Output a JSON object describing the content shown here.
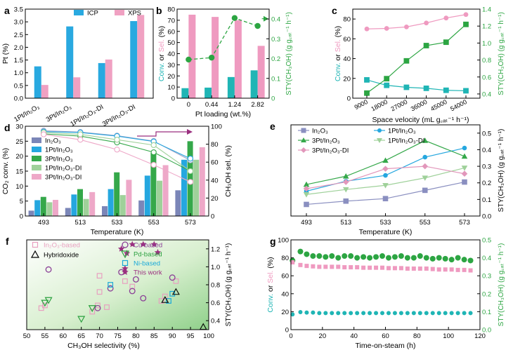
{
  "colors": {
    "icp": "#29a9e0",
    "xps": "#f0a1c2",
    "conv": "#1fb5b5",
    "sel": "#ef9ac0",
    "sty": "#2ca542",
    "in2o3": "#7b86b8",
    "pt1": "#25a7df",
    "pt3": "#35a84a",
    "pt1di": "#9fd19a",
    "pt3di": "#eea8c8",
    "in2o3_line": "#8a8fc0",
    "pt3di_line": "#e297bb",
    "pink_marker": "#e8a0c0",
    "cu_marker": "#8b3f97",
    "pd_marker": "#2ba03f",
    "ni_marker": "#1aa9d8",
    "this_work": "#9a2f7f",
    "arrow": "#9a2f7f"
  },
  "chart_data": [
    {
      "id": "a",
      "panel_label": "a",
      "type": "bar",
      "ylabel": "Pt (%)",
      "ylim": [
        0,
        3.5
      ],
      "yticks": [
        "0.0",
        "0.5",
        "1.0",
        "1.5",
        "2.0",
        "2.5",
        "3.0",
        "3.5"
      ],
      "categories": [
        "1Pt/In₂O₃",
        "3Pt/In₂O₃",
        "1Pt/In₂O₃-DI",
        "3Pt/In₂O₃-DI"
      ],
      "series": [
        {
          "name": "ICP",
          "values": [
            1.25,
            2.82,
            1.38,
            3.03
          ]
        },
        {
          "name": "XPS",
          "values": [
            0.52,
            0.82,
            1.52,
            3.27
          ]
        }
      ],
      "legend": [
        "ICP",
        "XPS"
      ]
    },
    {
      "id": "b",
      "panel_label": "b",
      "type": "bar",
      "xlabel": "Pt loading (wt.%)",
      "categories": [
        "0",
        "0.44",
        "1.24",
        "2.82"
      ],
      "ylim": [
        0,
        80
      ],
      "yticks": [
        "0",
        "10",
        "20",
        "30",
        "40",
        "50",
        "60",
        "70",
        "80"
      ],
      "ylabel_parts": [
        "Conv.",
        " or ",
        "Sel.",
        " (%)"
      ],
      "y2label": "STY(CH₃OH) (g g꜀ₐₜ⁻¹ h⁻¹)",
      "y2lim": [
        0,
        0.45
      ],
      "y2ticks": [
        "0",
        "0.1",
        "0.2",
        "0.3",
        "0.4"
      ],
      "series": [
        {
          "name": "Conv.",
          "values": [
            9,
            9.5,
            19,
            25
          ]
        },
        {
          "name": "Sel.",
          "values": [
            75,
            73,
            70,
            47
          ]
        },
        {
          "name": "STY",
          "values": [
            0.195,
            0.205,
            0.405,
            0.365
          ]
        }
      ]
    },
    {
      "id": "c",
      "panel_label": "c",
      "type": "line",
      "xlabel": "Space velocity (mL g꜀ₐₜ⁻¹ h⁻¹)",
      "x": [
        9000,
        18000,
        27000,
        36000,
        45000,
        54000
      ],
      "xticks": [
        "9000",
        "18000",
        "27000",
        "36000",
        "45000",
        "54000"
      ],
      "ylim": [
        0,
        90
      ],
      "yticks": [
        "0",
        "20",
        "40",
        "60",
        "80"
      ],
      "ylabel_parts": [
        "Conv.",
        " or ",
        "Sel.",
        " (%)"
      ],
      "y2label": "STY(CH₃OH) (g g꜀ₐₜ⁻¹ h⁻¹)",
      "y2lim": [
        0.35,
        1.4
      ],
      "y2ticks": [
        "0.4",
        "0.6",
        "0.8",
        "1.0",
        "1.2",
        "1.4"
      ],
      "series": [
        {
          "name": "Sel.",
          "values": [
            70,
            70.5,
            72,
            76,
            81,
            84.5
          ]
        },
        {
          "name": "Conv.",
          "values": [
            18.5,
            13,
            11,
            10,
            8,
            7.5
          ]
        },
        {
          "name": "STY",
          "values": [
            0.41,
            0.58,
            0.79,
            0.97,
            1.01,
            1.22
          ]
        }
      ]
    },
    {
      "id": "d",
      "panel_label": "d",
      "type": "bar",
      "xlabel": "Temperature (K)",
      "ylabel": "CO₂ conv. (%)",
      "ylim": [
        0,
        30
      ],
      "yticks": [
        "0",
        "5",
        "10",
        "15",
        "20",
        "25",
        "30"
      ],
      "y2label": "CH₃OH sel. (%)",
      "y2lim": [
        0,
        100
      ],
      "y2ticks": [
        "0",
        "20",
        "40",
        "60",
        "80",
        "100"
      ],
      "categories": [
        "493",
        "513",
        "533",
        "553",
        "573"
      ],
      "legend": [
        "In₂O₃",
        "1Pt/In₂O₃",
        "3Pt/In₂O₃",
        "1Pt/In₂O₃-DI",
        "3Pt/In₂O₃-DI"
      ],
      "series": [
        {
          "name": "In₂O₃",
          "values": [
            1.8,
            2.7,
            3.3,
            5.2,
            8.6
          ]
        },
        {
          "name": "1Pt/In₂O₃",
          "values": [
            5.3,
            7.2,
            9.0,
            13.5,
            18.8
          ]
        },
        {
          "name": "3Pt/In₂O₃",
          "values": [
            6.4,
            9.0,
            14.6,
            21.1,
            25.0
          ]
        },
        {
          "name": "1Pt/In₂O₃-DI",
          "values": [
            4.6,
            5.7,
            7.0,
            11.8,
            18.8
          ]
        },
        {
          "name": "3Pt/In₂O₃-DI",
          "values": [
            5.4,
            8.0,
            12.1,
            17.0,
            23.0
          ]
        }
      ],
      "selectivity": [
        {
          "name": "In₂O₃",
          "values": [
            95,
            93.5,
            89.5,
            83.5,
            62
          ]
        },
        {
          "name": "1Pt/In₂O₃",
          "values": [
            94,
            93,
            89,
            83,
            64
          ]
        },
        {
          "name": "3Pt/In₂O₃",
          "values": [
            91.5,
            89,
            82,
            71,
            50
          ]
        },
        {
          "name": "1Pt/In₂O₃-DI",
          "values": [
            93,
            91,
            85,
            79,
            50
          ]
        },
        {
          "name": "3Pt/In₂O₃-DI",
          "values": [
            91,
            85,
            74,
            57,
            38
          ]
        }
      ]
    },
    {
      "id": "e",
      "panel_label": "e",
      "type": "line",
      "xlabel": "Temperature (K)",
      "x": [
        493,
        513,
        533,
        553,
        573
      ],
      "xticks": [
        "493",
        "513",
        "533",
        "553",
        "573"
      ],
      "ylabel": "STY(CH₃OH) (g g꜀ₐₜ⁻¹ h⁻¹)",
      "ylim": [
        0,
        0.55
      ],
      "yticks": [
        "0.0",
        "0.1",
        "0.2",
        "0.3",
        "0.4",
        "0.5"
      ],
      "legend": [
        "In₂O₃",
        "1Pt/In₂O₃",
        "3Pt/In₂O₃",
        "1Pt/In₂O₃-DI",
        "3Pt/In₂O₃-DI"
      ],
      "series": [
        {
          "name": "In₂O₃",
          "values": [
            0.07,
            0.09,
            0.105,
            0.155,
            0.205
          ]
        },
        {
          "name": "1Pt/In₂O₃",
          "values": [
            0.15,
            0.21,
            0.245,
            0.355,
            0.41
          ]
        },
        {
          "name": "3Pt/In₂O₃",
          "values": [
            0.19,
            0.24,
            0.335,
            0.455,
            0.36
          ]
        },
        {
          "name": "1Pt/In₂O₃-DI",
          "values": [
            0.13,
            0.16,
            0.185,
            0.23,
            0.29
          ]
        },
        {
          "name": "3Pt/In₂O₃-DI",
          "values": [
            0.165,
            0.205,
            0.285,
            0.3,
            0.255
          ]
        }
      ]
    },
    {
      "id": "f",
      "panel_label": "f",
      "type": "scatter",
      "xlabel": "CH₃OH selectivity (%)",
      "xlim": [
        50,
        100
      ],
      "xticks": [
        "50",
        "55",
        "60",
        "65",
        "70",
        "75",
        "80",
        "85",
        "90",
        "95",
        "100"
      ],
      "ylabel": "STY(CH₃OH) (g g꜀ₐₜ⁻¹ h⁻¹)",
      "ylim": [
        0.3,
        1.3
      ],
      "yticks": [
        "0.4",
        "0.6",
        "0.8",
        "1.0",
        "1.2"
      ],
      "legend": [
        "In₂O₃-based",
        "Hybridoxide",
        "Cu-based",
        "Pd-based",
        "Ni-based",
        "This work"
      ],
      "series": [
        {
          "name": "In₂O₃-based",
          "points": [
            [
              54,
              0.54
            ],
            [
              55,
              0.57
            ],
            [
              68,
              0.5
            ],
            [
              69.5,
              0.57
            ],
            [
              70,
              0.72
            ],
            [
              70,
              0.9
            ],
            [
              72,
              0.55
            ],
            [
              77,
              0.84
            ],
            [
              79,
              0.78
            ],
            [
              87,
              0.62
            ],
            [
              88,
              0.67
            ],
            [
              91,
              0.84
            ]
          ]
        },
        {
          "name": "Hybridoxide",
          "points": [
            [
              88,
              0.63
            ],
            [
              91,
              0.72
            ],
            [
              98.5,
              0.33
            ]
          ]
        },
        {
          "name": "Cu-based",
          "points": [
            [
              56,
              0.97
            ],
            [
              69.5,
              0.54
            ],
            [
              73,
              0.76
            ],
            [
              76,
              0.94
            ],
            [
              79,
              0.73
            ],
            [
              80,
              0.86
            ],
            [
              82,
              0.65
            ],
            [
              90,
              0.88
            ]
          ]
        },
        {
          "name": "Pd-based",
          "points": [
            [
              55,
              0.6
            ],
            [
              56,
              0.63
            ],
            [
              65,
              0.42
            ],
            [
              68,
              0.54
            ]
          ]
        },
        {
          "name": "Ni-based",
          "points": [
            [
              73,
              0.8
            ],
            [
              89,
              0.62
            ],
            [
              90,
              0.7
            ]
          ]
        },
        {
          "name": "This work",
          "points": [
            [
              76,
              1.2
            ],
            [
              77.5,
              1.15
            ],
            [
              79,
              1.25
            ],
            [
              77,
              0.98
            ],
            [
              82,
              1.25
            ],
            [
              85,
              1.25
            ],
            [
              86,
              1.16
            ]
          ]
        }
      ]
    },
    {
      "id": "g",
      "panel_label": "g",
      "type": "scatter",
      "xlabel": "Time-on-steam (h)",
      "xlim": [
        0,
        120
      ],
      "xticks": [
        "0",
        "20",
        "40",
        "60",
        "80",
        "100",
        "120"
      ],
      "ylim": [
        0,
        100
      ],
      "yticks": [
        "0",
        "20",
        "40",
        "60",
        "80",
        "100"
      ],
      "ylabel_parts": [
        "Conv.",
        " or ",
        "Sel.",
        " (%)"
      ],
      "y2label": "STY(CH₃OH) (g g꜀ₐₜ⁻¹ h⁻¹)",
      "y2lim": [
        0,
        0.5
      ],
      "y2ticks": [
        "0.0",
        "0.1",
        "0.2",
        "0.3",
        "0.4",
        "0.5"
      ],
      "series": [
        {
          "name": "STY",
          "t": [
            1,
            6,
            10,
            14,
            18,
            22,
            26,
            30,
            34,
            38,
            42,
            46,
            50,
            54,
            58,
            62,
            66,
            70,
            74,
            78,
            82,
            86,
            90,
            94,
            98,
            102,
            106,
            110,
            114
          ],
          "values": [
            0.385,
            0.435,
            0.42,
            0.41,
            0.41,
            0.405,
            0.41,
            0.4,
            0.41,
            0.41,
            0.4,
            0.405,
            0.4,
            0.405,
            0.41,
            0.4,
            0.405,
            0.41,
            0.4,
            0.4,
            0.41,
            0.4,
            0.395,
            0.4,
            0.395,
            0.39,
            0.4,
            0.39,
            0.385
          ]
        },
        {
          "name": "Sel.",
          "t": [
            1,
            6,
            10,
            14,
            18,
            22,
            26,
            30,
            34,
            38,
            42,
            46,
            50,
            54,
            58,
            62,
            66,
            70,
            74,
            78,
            82,
            86,
            90,
            94,
            98,
            102,
            106,
            110,
            114
          ],
          "values": [
            75,
            72,
            71,
            70.5,
            70,
            70,
            70,
            70,
            69.5,
            69.5,
            69.5,
            69,
            69,
            69,
            69,
            68.5,
            68.5,
            68.5,
            68,
            68,
            68,
            68,
            67.5,
            67,
            67,
            67,
            66.5,
            66.5,
            66
          ]
        },
        {
          "name": "Conv.",
          "t": [
            1,
            6,
            10,
            14,
            18,
            22,
            26,
            30,
            34,
            38,
            42,
            46,
            50,
            54,
            58,
            62,
            66,
            70,
            74,
            78,
            82,
            86,
            90,
            94,
            98,
            102,
            106,
            110,
            114
          ],
          "values": [
            17,
            19.5,
            19,
            19,
            18.5,
            18.5,
            18.5,
            18.5,
            18.5,
            18.5,
            18.5,
            18.5,
            18.5,
            18.5,
            18.5,
            18.5,
            18.5,
            18.5,
            18.5,
            18.5,
            18.5,
            18.5,
            18.5,
            18.5,
            18.5,
            18.5,
            18.5,
            18.5,
            18.5
          ]
        }
      ]
    }
  ]
}
